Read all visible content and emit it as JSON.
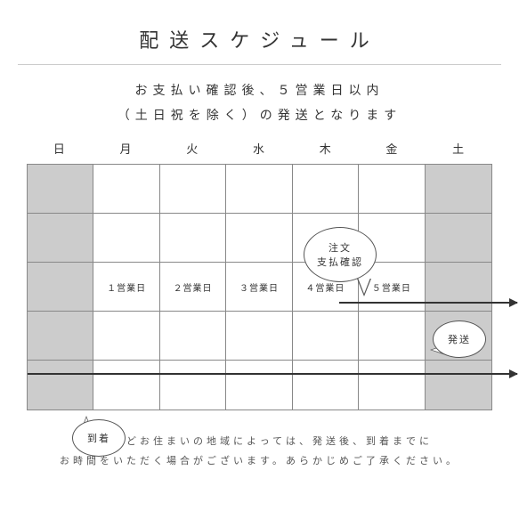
{
  "title": "配送スケジュール",
  "subtitle1": "お支払い確認後、５営業日以内",
  "subtitle2": "（土日祝を除く）の発送となります",
  "days": [
    "日",
    "月",
    "火",
    "水",
    "木",
    "金",
    "土"
  ],
  "cells": {
    "r3c1": "１営業日",
    "r3c2": "２営業日",
    "r3c3": "３営業日",
    "r3c4": "４営業日",
    "r3c5": "５営業日"
  },
  "bubble1a": "注文",
  "bubble1b": "支払確認",
  "bubble2": "発送",
  "bubble3": "到着",
  "note1": "離島などお住まいの地域によっては、発送後、到着までに",
  "note2": "お時間をいただく場合がございます。あらかじめご了承ください。",
  "colors": {
    "weekend": "#cccccc",
    "border": "#888888",
    "text": "#333333",
    "bg": "#ffffff"
  }
}
